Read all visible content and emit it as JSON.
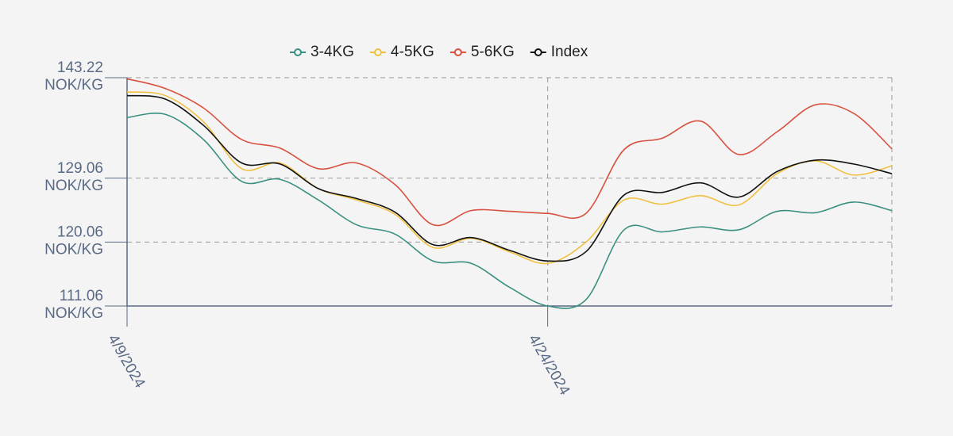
{
  "chart_data": {
    "type": "line",
    "categories": [
      "4/9/2024",
      null,
      null,
      null,
      null,
      null,
      null,
      null,
      null,
      null,
      null,
      "4/24/2024",
      null,
      null,
      null,
      null,
      null,
      null,
      null,
      null,
      null
    ],
    "series": [
      {
        "name": "3-4KG",
        "color": "#3a9080",
        "values": [
          137.6,
          138.06,
          134.5,
          128.6,
          128.9,
          126.0,
          122.5,
          121.2,
          117.4,
          117.06,
          113.7,
          111.06,
          111.95,
          121.8,
          121.5,
          122.2,
          121.8,
          124.4,
          124.2,
          125.7,
          124.5
        ]
      },
      {
        "name": "4-5KG",
        "color": "#f0c040",
        "values": [
          141.2,
          140.7,
          137.0,
          130.4,
          131.2,
          127.6,
          126.0,
          124.0,
          119.3,
          120.6,
          118.7,
          117.06,
          120.06,
          126.0,
          125.4,
          126.6,
          125.3,
          129.7,
          131.5,
          129.5,
          130.8
        ]
      },
      {
        "name": "5-6KG",
        "color": "#d9503f",
        "values": [
          143.06,
          141.7,
          138.95,
          134.5,
          133.3,
          130.4,
          131.2,
          128.2,
          122.5,
          124.5,
          124.4,
          124.1,
          124.1,
          133.1,
          134.7,
          137.1,
          132.4,
          135.6,
          139.4,
          138.2,
          133.2
        ]
      },
      {
        "name": "Index",
        "color": "#111111",
        "values": [
          140.7,
          140.2,
          136.5,
          131.2,
          131.06,
          127.6,
          126.2,
          124.3,
          119.7,
          120.7,
          118.9,
          117.4,
          118.7,
          126.7,
          127.06,
          128.4,
          126.4,
          130.0,
          131.6,
          131.06,
          129.7
        ]
      }
    ],
    "ylim": [
      111.06,
      143.22
    ],
    "yticks": [
      {
        "value": 111.06,
        "label": "111.06 NOK/KG"
      },
      {
        "value": 120.06,
        "label": "120.06 NOK/KG"
      },
      {
        "value": 129.06,
        "label": "129.06 NOK/KG"
      },
      {
        "value": 143.22,
        "label": "143.22 NOK/KG"
      }
    ],
    "grid": true
  }
}
